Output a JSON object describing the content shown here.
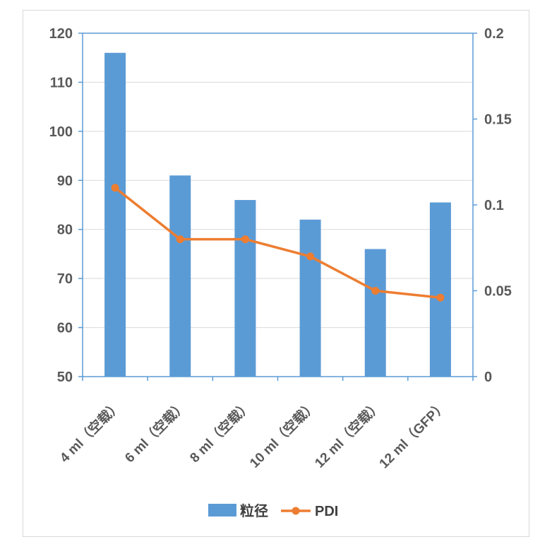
{
  "chart_data": {
    "type": "bar",
    "categories": [
      "4 ml（空载）",
      "6 ml（空载）",
      "8 ml（空载）",
      "10 ml（空载）",
      "12 ml（空载）",
      "12 ml（GFP）"
    ],
    "series": [
      {
        "name": "粒径",
        "type": "bar",
        "axis": "left",
        "color": "#5B9BD5",
        "values": [
          116,
          91,
          86,
          82,
          76,
          85.5
        ]
      },
      {
        "name": "PDI",
        "type": "line",
        "axis": "right",
        "color": "#ED7D31",
        "values": [
          0.11,
          0.08,
          0.08,
          0.07,
          0.05,
          0.046
        ]
      }
    ],
    "y_left": {
      "range": [
        50,
        120
      ],
      "ticks": [
        "50",
        "60",
        "70",
        "80",
        "90",
        "100",
        "110",
        "120"
      ]
    },
    "y_right": {
      "range": [
        0,
        0.2
      ],
      "ticks": [
        "0",
        "0.05",
        "0.1",
        "0.15",
        "0.2"
      ]
    },
    "grid": true,
    "legend_position": "bottom"
  }
}
